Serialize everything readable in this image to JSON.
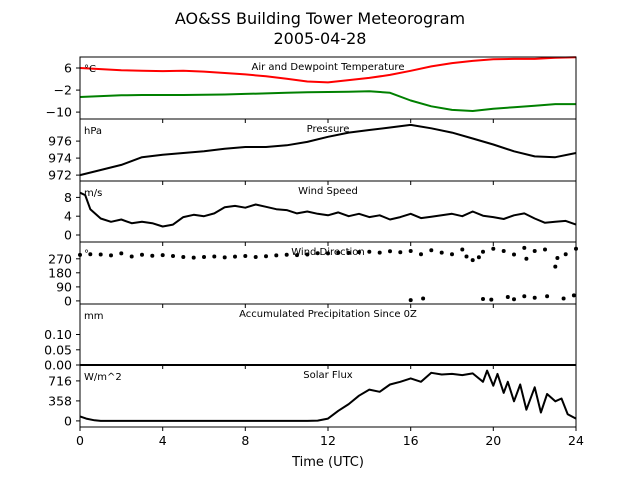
{
  "figure": {
    "title_line1": "AO&SS Building Tower Meteorogram",
    "title_line2": "2005-04-28",
    "xlabel": "Time (UTC)"
  },
  "chart_data": [
    {
      "type": "line",
      "title": "Air and Dewpoint Temperature",
      "unit": "°C",
      "xlim": [
        0,
        24
      ],
      "ylim": [
        -12.5,
        10
      ],
      "yticks": [
        6,
        -2,
        -10
      ],
      "ytick_labels": [
        "6",
        "−2",
        "−10"
      ],
      "colors": [
        "#ff0000",
        "#008000"
      ],
      "series": [
        {
          "x": [
            0,
            1,
            2,
            3,
            4,
            5,
            6,
            7,
            8,
            9,
            10,
            11,
            12,
            13,
            14,
            15,
            16,
            17,
            18,
            19,
            20,
            21,
            22,
            23,
            24
          ],
          "values": [
            6.0,
            5.6,
            5.2,
            5.0,
            4.9,
            5.0,
            4.7,
            4.2,
            3.7,
            3.0,
            2.1,
            1.1,
            0.8,
            1.6,
            2.4,
            3.5,
            5.0,
            6.6,
            7.8,
            8.6,
            9.2,
            9.3,
            9.3,
            9.7,
            9.9
          ]
        },
        {
          "x": [
            0,
            1,
            2,
            3,
            4,
            5,
            6,
            7,
            8,
            9,
            10,
            11,
            12,
            13,
            14,
            15,
            16,
            17,
            18,
            19,
            20,
            21,
            22,
            23,
            24
          ],
          "values": [
            -4.5,
            -4.2,
            -3.9,
            -3.8,
            -3.8,
            -3.8,
            -3.7,
            -3.6,
            -3.4,
            -3.2,
            -3.0,
            -2.8,
            -2.7,
            -2.6,
            -2.4,
            -3.0,
            -5.8,
            -7.9,
            -9.2,
            -9.6,
            -8.8,
            -8.2,
            -7.7,
            -7.1,
            -7.1
          ]
        }
      ]
    },
    {
      "type": "line",
      "title": "Pressure",
      "unit": "hPa",
      "xlim": [
        0,
        24
      ],
      "ylim": [
        971.3,
        978.6
      ],
      "yticks": [
        976,
        974,
        972
      ],
      "ytick_labels": [
        "976",
        "974",
        "972"
      ],
      "colors": [
        "#000000"
      ],
      "series": [
        {
          "x": [
            0,
            1,
            2,
            3,
            4,
            5,
            6,
            7,
            8,
            9,
            10,
            11,
            12,
            13,
            14,
            15,
            16,
            17,
            18,
            19,
            20,
            21,
            22,
            23,
            24
          ],
          "values": [
            972.0,
            972.6,
            973.2,
            974.1,
            974.4,
            974.6,
            974.8,
            975.1,
            975.3,
            975.3,
            975.5,
            975.9,
            976.5,
            977.0,
            977.3,
            977.6,
            977.9,
            977.5,
            977.0,
            976.3,
            975.6,
            974.8,
            974.2,
            974.1,
            974.6
          ]
        }
      ]
    },
    {
      "type": "line",
      "title": "Wind Speed",
      "unit": "m/s",
      "xlim": [
        0,
        24
      ],
      "ylim": [
        -1.5,
        11.5
      ],
      "yticks": [
        8,
        4,
        0
      ],
      "ytick_labels": [
        "8",
        "4",
        "0"
      ],
      "colors": [
        "#000000"
      ],
      "series": [
        {
          "x": [
            0,
            0.25,
            0.5,
            1,
            1.5,
            2,
            2.5,
            3,
            3.5,
            4,
            4.5,
            5,
            5.5,
            6,
            6.5,
            7,
            7.5,
            8,
            8.5,
            9,
            9.5,
            10,
            10.5,
            11,
            11.5,
            12,
            12.5,
            13,
            13.5,
            14,
            14.5,
            15,
            15.5,
            16,
            16.5,
            17,
            17.5,
            18,
            18.5,
            19,
            19.5,
            20,
            20.5,
            21,
            21.5,
            22,
            22.5,
            23,
            23.5,
            24
          ],
          "values": [
            9.0,
            8.5,
            5.5,
            3.5,
            2.8,
            3.3,
            2.5,
            2.8,
            2.5,
            1.8,
            2.2,
            3.8,
            4.3,
            4.0,
            4.6,
            5.9,
            6.2,
            5.8,
            6.5,
            6.0,
            5.5,
            5.3,
            4.6,
            5.0,
            4.5,
            4.2,
            4.8,
            4.0,
            4.5,
            3.8,
            4.2,
            3.3,
            3.8,
            4.5,
            3.6,
            3.9,
            4.2,
            4.5,
            4.0,
            5.0,
            4.1,
            3.8,
            3.4,
            4.2,
            4.6,
            3.5,
            2.6,
            2.8,
            3.0,
            2.2
          ]
        }
      ]
    },
    {
      "type": "scatter",
      "title": "Wind Direction",
      "unit": "°",
      "xlim": [
        0,
        24
      ],
      "ylim": [
        -20,
        378
      ],
      "yticks": [
        270,
        180,
        90,
        0
      ],
      "ytick_labels": [
        "270",
        "180",
        "90",
        "0"
      ],
      "colors": [
        "#000000"
      ],
      "series": [
        {
          "x": [
            0,
            0.5,
            1,
            1.5,
            2,
            2.5,
            3,
            3.5,
            4,
            4.5,
            5,
            5.5,
            6,
            6.5,
            7,
            7.5,
            8,
            8.5,
            9,
            9.5,
            10,
            10.5,
            11,
            11.5,
            12,
            12.5,
            13,
            13.5,
            14,
            14.5,
            15,
            15.5,
            16,
            16.5,
            17,
            17.5,
            18,
            18.5,
            19,
            19.5,
            20,
            20.5,
            21,
            21.5,
            22,
            22.5,
            23,
            23.5,
            24,
            16.0,
            16.6,
            19.5,
            19.9,
            20.7,
            21.0,
            21.5,
            22.0,
            22.6,
            23.4,
            23.9,
            19.3,
            21.6,
            23.1,
            18.7
          ],
          "values": [
            295,
            300,
            298,
            292,
            305,
            285,
            296,
            290,
            294,
            288,
            282,
            278,
            282,
            285,
            279,
            284,
            288,
            282,
            286,
            292,
            296,
            294,
            298,
            306,
            305,
            309,
            308,
            313,
            315,
            310,
            318,
            312,
            320,
            300,
            325,
            310,
            300,
            330,
            262,
            315,
            335,
            320,
            298,
            340,
            320,
            330,
            220,
            300,
            335,
            5,
            15,
            12,
            8,
            25,
            10,
            30,
            20,
            30,
            15,
            35,
            280,
            270,
            275,
            285
          ]
        }
      ]
    },
    {
      "type": "line",
      "title": "Accumulated Precipitation Since 0Z",
      "unit": "mm",
      "xlim": [
        0,
        24
      ],
      "ylim": [
        0,
        0.2
      ],
      "yticks": [
        0.1,
        0.05,
        0.0
      ],
      "ytick_labels": [
        "0.10",
        "0.05",
        "0.00"
      ],
      "colors": [
        "#000000"
      ],
      "series": [
        {
          "x": [
            0,
            24
          ],
          "values": [
            0,
            0
          ]
        }
      ]
    },
    {
      "type": "line",
      "title": "Solar Flux",
      "unit": "W/m^2",
      "xlim": [
        0,
        24
      ],
      "ylim": [
        -110,
        1000
      ],
      "yticks": [
        716,
        358,
        0
      ],
      "ytick_labels": [
        "716",
        "358",
        "0"
      ],
      "colors": [
        "#000000"
      ],
      "series": [
        {
          "x": [
            0,
            0.3,
            0.7,
            1,
            2,
            4,
            6,
            8,
            10,
            11,
            11.5,
            12,
            12.5,
            13,
            13.5,
            14,
            14.5,
            15,
            15.5,
            16,
            16.5,
            17,
            17.5,
            18,
            18.5,
            19,
            19.5,
            19.7,
            20,
            20.2,
            20.5,
            20.7,
            21,
            21.3,
            21.6,
            22,
            22.3,
            22.6,
            23,
            23.3,
            23.6,
            24
          ],
          "values": [
            80,
            40,
            10,
            0,
            0,
            0,
            0,
            0,
            0,
            0,
            5,
            40,
            180,
            300,
            450,
            560,
            520,
            650,
            700,
            760,
            700,
            860,
            830,
            840,
            820,
            850,
            700,
            900,
            630,
            840,
            500,
            700,
            350,
            650,
            200,
            600,
            150,
            480,
            350,
            400,
            120,
            40
          ]
        }
      ]
    }
  ]
}
